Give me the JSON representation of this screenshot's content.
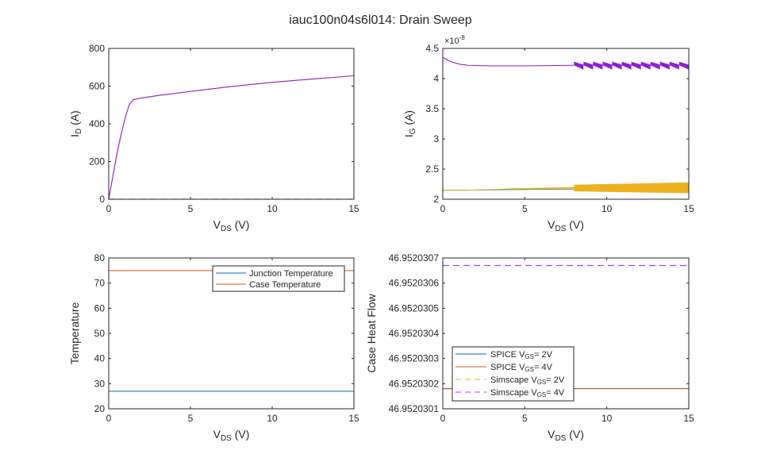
{
  "title": "iauc100n04s6l014: Drain Sweep",
  "colors": {
    "blue": "#0072BD",
    "orange": "#D95319",
    "yellow": "#EDB120",
    "purple": "#8B1FD6",
    "purple_dash": "#A040E8"
  },
  "chart_data": [
    {
      "type": "line",
      "xlabel": "V_DS (V)",
      "xlabel_main": "V",
      "xlabel_sub": "DS",
      "xlabel_tail": " (V)",
      "ylabel_main": "I",
      "ylabel_sub": "D",
      "ylabel_tail": " (A)",
      "xlim": [
        0,
        15
      ],
      "ylim": [
        0,
        800
      ],
      "xticks": [
        0,
        5,
        10,
        15
      ],
      "yticks": [
        0,
        200,
        400,
        600,
        800
      ],
      "series": [
        {
          "name": "SPICE VGS=2V",
          "color": "blue",
          "dash": false,
          "x": [
            0,
            15
          ],
          "y": [
            0,
            0
          ]
        },
        {
          "name": "Simscape VGS=2V",
          "color": "yellow",
          "dash": true,
          "x": [
            0,
            15
          ],
          "y": [
            0,
            0
          ]
        },
        {
          "name": "SPICE VGS=4V",
          "color": "orange",
          "dash": false,
          "x": [
            0,
            0.25,
            0.5,
            0.75,
            1,
            1.25,
            1.5,
            2,
            3,
            5,
            7.5,
            10,
            12.5,
            15
          ],
          "y": [
            0,
            120,
            240,
            340,
            430,
            500,
            528,
            537,
            550,
            572,
            598,
            620,
            638,
            655
          ]
        },
        {
          "name": "Simscape VGS=4V",
          "color": "purple",
          "dash": false,
          "x": [
            0,
            0.25,
            0.5,
            0.75,
            1,
            1.25,
            1.5,
            2,
            3,
            5,
            7.5,
            10,
            12.5,
            15
          ],
          "y": [
            0,
            120,
            240,
            340,
            430,
            500,
            528,
            537,
            550,
            572,
            598,
            620,
            638,
            655
          ]
        }
      ]
    },
    {
      "type": "line",
      "exponent": "×10",
      "exponent_power": "-8",
      "xlabel_main": "V",
      "xlabel_sub": "DS",
      "xlabel_tail": " (V)",
      "ylabel_main": "I",
      "ylabel_sub": "G",
      "ylabel_tail": " (A)",
      "xlim": [
        0,
        15
      ],
      "ylim": [
        2,
        4.5
      ],
      "xticks": [
        0,
        5,
        10,
        15
      ],
      "yticks": [
        2,
        2.5,
        3,
        3.5,
        4,
        4.5
      ],
      "series": [
        {
          "name": "SPICE VGS=2V",
          "color": "blue",
          "dash": false,
          "x": [
            0,
            1.5,
            4,
            8
          ],
          "y": [
            2.15,
            2.15,
            2.16,
            2.17
          ]
        },
        {
          "name": "Simscape VGS=2V",
          "color": "yellow",
          "dash": false,
          "x": [
            0,
            1.5,
            4,
            8,
            15
          ],
          "y": [
            2.15,
            2.15,
            2.17,
            2.19,
            2.2
          ],
          "band": {
            "x": [
              4,
              8,
              8,
              15
            ],
            "lower": [
              2.16,
              2.17,
              2.13,
              2.1
            ],
            "upper": [
              2.18,
              2.2,
              2.24,
              2.28
            ]
          }
        },
        {
          "name": "SPICE VGS=4V",
          "color": "orange",
          "dash": false,
          "x": [
            0,
            0.5,
            1,
            1.5
          ],
          "y": [
            4.35,
            4.28,
            4.24,
            4.22
          ]
        },
        {
          "name": "Simscape VGS=4V",
          "color": "purple",
          "dash": false,
          "x": [
            0,
            0.5,
            1,
            1.5,
            3,
            5,
            8
          ],
          "y": [
            4.35,
            4.28,
            4.24,
            4.22,
            4.21,
            4.21,
            4.22
          ],
          "sawtooth": {
            "x": [
              8,
              15
            ],
            "lower": 4.15,
            "upper": 4.3,
            "teeth": 12
          }
        }
      ]
    },
    {
      "type": "line",
      "xlabel_main": "V",
      "xlabel_sub": "DS",
      "xlabel_tail": " (V)",
      "ylabel": "Temperature",
      "xlim": [
        0,
        15
      ],
      "ylim": [
        20,
        80
      ],
      "xticks": [
        0,
        5,
        10,
        15
      ],
      "yticks": [
        20,
        30,
        40,
        50,
        60,
        70,
        80
      ],
      "legend": {
        "placement": "top-right",
        "entries": [
          "Junction Temperature",
          "Case Temperature"
        ]
      },
      "series": [
        {
          "name": "Junction Temperature",
          "color": "blue",
          "dash": false,
          "x": [
            0,
            15
          ],
          "y": [
            27,
            27
          ]
        },
        {
          "name": "Case Temperature",
          "color": "orange",
          "dash": false,
          "x": [
            0,
            15
          ],
          "y": [
            75,
            75
          ]
        }
      ]
    },
    {
      "type": "line",
      "xlabel_main": "V",
      "xlabel_sub": "DS",
      "xlabel_tail": " (V)",
      "ylabel": "Case Heat Flow",
      "xlim": [
        0,
        15
      ],
      "ylim": [
        46.9520301,
        46.9520307
      ],
      "xticks": [
        0,
        5,
        10,
        15
      ],
      "yticks": [
        46.9520301,
        46.9520302,
        46.9520303,
        46.9520304,
        46.9520305,
        46.9520306,
        46.9520307
      ],
      "ytick_labels": [
        "46.9520301",
        "46.9520302",
        "46.9520303",
        "46.9520304",
        "46.9520305",
        "46.9520306",
        "46.9520307"
      ],
      "legend": {
        "placement": "bottom-left",
        "entries": [
          {
            "pre": "SPICE V",
            "sub": "GS",
            "post": "= 2V",
            "color": "blue",
            "dash": false
          },
          {
            "pre": "SPICE V",
            "sub": "GS",
            "post": "= 4V",
            "color": "orange",
            "dash": false
          },
          {
            "pre": "Simscape V",
            "sub": "GS",
            "post": "= 2V",
            "color": "yellow",
            "dash": true
          },
          {
            "pre": "Simscape V",
            "sub": "GS",
            "post": "= 4V",
            "color": "purple_dash",
            "dash": true
          }
        ]
      },
      "series": [
        {
          "name": "SPICE VGS=2V",
          "color": "blue",
          "dash": false,
          "x": [
            0,
            15
          ],
          "y": [
            46.95203018,
            46.95203018
          ]
        },
        {
          "name": "SPICE VGS=4V",
          "color": "orange",
          "dash": false,
          "x": [
            0,
            15
          ],
          "y": [
            46.95203018,
            46.95203018
          ]
        },
        {
          "name": "Simscape VGS=4V",
          "color": "purple_dash",
          "dash": true,
          "x": [
            0,
            15
          ],
          "y": [
            46.95203067,
            46.95203067
          ]
        }
      ]
    }
  ]
}
